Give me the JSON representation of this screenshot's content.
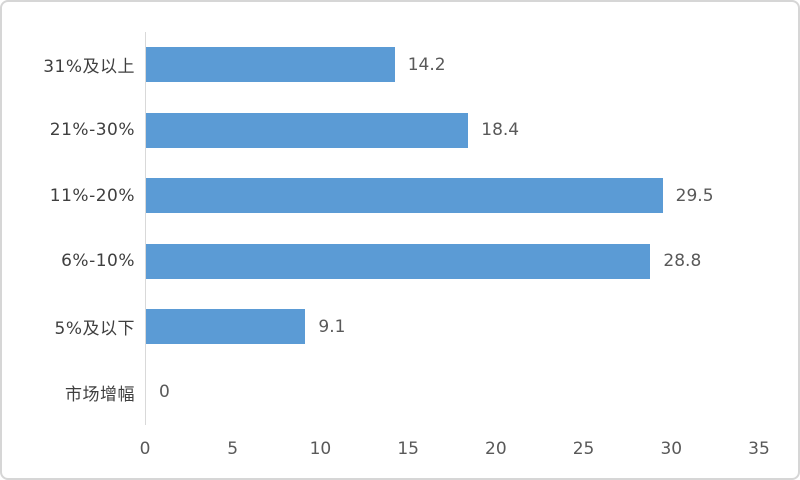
{
  "frame": {
    "background": "#ffffff",
    "border_color": "#d6d6d6"
  },
  "chart_data": {
    "type": "bar",
    "orientation": "horizontal",
    "title": "",
    "xlabel": "",
    "ylabel": "",
    "categories": [
      "31%及以上",
      "21%-30%",
      "11%-20%",
      "6%-10%",
      "5%及以下",
      "市场增幅"
    ],
    "values": [
      14.2,
      18.4,
      29.5,
      28.8,
      9.1,
      0
    ],
    "data_labels": [
      "14.2",
      "18.4",
      "29.5",
      "28.8",
      "9.1",
      "0"
    ],
    "x_ticks": [
      "0",
      "5",
      "10",
      "15",
      "20",
      "25",
      "30",
      "35"
    ],
    "xlim": [
      0,
      35
    ],
    "grid": false,
    "legend": false,
    "data_labels_position": "outside-end",
    "colors": {
      "bar": "#5b9bd5",
      "axis_line": "#d9d9d9",
      "category_label": "#3f3f3f",
      "value_label": "#595959",
      "tick_label": "#595959"
    }
  }
}
